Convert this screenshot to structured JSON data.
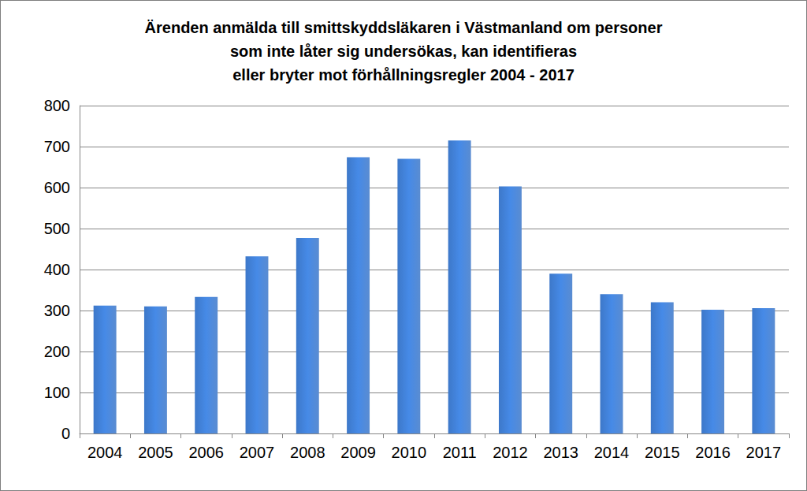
{
  "chart_data": {
    "type": "bar",
    "title": "Ärenden anmälda till smittskyddsläkaren i Västmanland om personer\nsom inte låter sig undersökas, kan identifieras\neller bryter mot förhållningsregler 2004 - 2017",
    "categories": [
      "2004",
      "2005",
      "2006",
      "2007",
      "2008",
      "2009",
      "2010",
      "2011",
      "2012",
      "2013",
      "2014",
      "2015",
      "2016",
      "2017"
    ],
    "values": [
      312,
      310,
      333,
      432,
      477,
      674,
      670,
      715,
      603,
      390,
      340,
      320,
      302,
      306
    ],
    "color": "#3d78c9",
    "ylim": [
      0,
      800
    ],
    "yticks": [
      0,
      100,
      200,
      300,
      400,
      500,
      600,
      700,
      800
    ],
    "grid": true
  }
}
